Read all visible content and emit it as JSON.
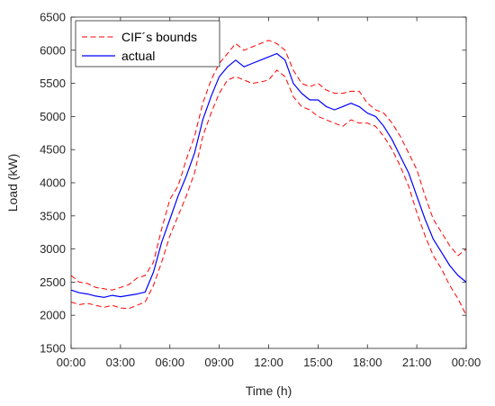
{
  "chart_data": {
    "type": "line",
    "title": "",
    "xlabel": "Time (h)",
    "ylabel": "Load (kW)",
    "xlim": [
      0,
      24
    ],
    "ylim": [
      1500,
      6500
    ],
    "x_ticks": [
      0,
      3,
      6,
      9,
      12,
      15,
      18,
      21,
      24
    ],
    "x_tick_labels": [
      "00:00",
      "03:00",
      "06:00",
      "09:00",
      "12:00",
      "15:00",
      "18:00",
      "21:00",
      "00:00"
    ],
    "y_ticks": [
      1500,
      2000,
      2500,
      3000,
      3500,
      4000,
      4500,
      5000,
      5500,
      6000,
      6500
    ],
    "y_tick_labels": [
      "1500",
      "2000",
      "2500",
      "3000",
      "3500",
      "4000",
      "4500",
      "5000",
      "5500",
      "6000",
      "6500"
    ],
    "grid": false,
    "legend_position": "top-left",
    "x": [
      0,
      0.5,
      1,
      1.5,
      2,
      2.5,
      3,
      3.5,
      4,
      4.5,
      5,
      5.5,
      6,
      6.5,
      7,
      7.5,
      8,
      8.5,
      9,
      9.5,
      10,
      10.5,
      11,
      11.5,
      12,
      12.5,
      13,
      13.5,
      14,
      14.5,
      15,
      15.5,
      16,
      16.5,
      17,
      17.5,
      18,
      18.5,
      19,
      19.5,
      20,
      20.5,
      21,
      21.5,
      22,
      22.5,
      23,
      23.5,
      24
    ],
    "series": [
      {
        "name": "CIF´s bounds",
        "role": "upper",
        "style": "dashed",
        "color": "#ff0000",
        "values": [
          2600,
          2500,
          2480,
          2420,
          2400,
          2380,
          2420,
          2460,
          2560,
          2600,
          2800,
          3300,
          3750,
          3950,
          4350,
          4700,
          5200,
          5550,
          5800,
          5950,
          6100,
          6000,
          6050,
          6100,
          6150,
          6100,
          6000,
          5700,
          5500,
          5450,
          5500,
          5400,
          5350,
          5350,
          5380,
          5380,
          5200,
          5100,
          5050,
          4900,
          4700,
          4450,
          4200,
          3800,
          3450,
          3250,
          3050,
          2900,
          3000
        ]
      },
      {
        "name": "",
        "role": "lower",
        "style": "dashed",
        "color": "#ff0000",
        "values": [
          2200,
          2160,
          2180,
          2150,
          2120,
          2150,
          2110,
          2100,
          2150,
          2200,
          2450,
          2800,
          3200,
          3500,
          3800,
          4150,
          4700,
          5050,
          5350,
          5550,
          5600,
          5550,
          5500,
          5520,
          5550,
          5700,
          5600,
          5300,
          5150,
          5100,
          5000,
          4950,
          4900,
          4850,
          4950,
          4900,
          4900,
          4850,
          4700,
          4500,
          4250,
          3950,
          3550,
          3200,
          2900,
          2700,
          2450,
          2250,
          2000
        ]
      },
      {
        "name": "actual",
        "role": "actual",
        "style": "solid",
        "color": "#0000ff",
        "values": [
          2380,
          2340,
          2320,
          2290,
          2270,
          2300,
          2280,
          2300,
          2320,
          2350,
          2650,
          3100,
          3450,
          3800,
          4100,
          4450,
          4950,
          5300,
          5600,
          5750,
          5850,
          5750,
          5800,
          5850,
          5900,
          5950,
          5850,
          5500,
          5350,
          5250,
          5250,
          5150,
          5100,
          5150,
          5200,
          5150,
          5050,
          5000,
          4850,
          4650,
          4400,
          4150,
          3800,
          3450,
          3150,
          2950,
          2750,
          2600,
          2500
        ]
      }
    ]
  }
}
